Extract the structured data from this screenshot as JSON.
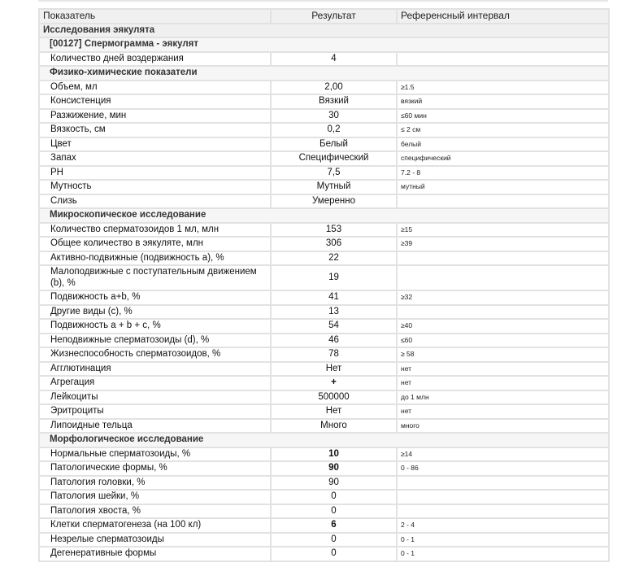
{
  "header": {
    "col_name": "Показатель",
    "col_result": "Результат",
    "col_ref": "Референсный интервал"
  },
  "rows": [
    {
      "type": "section",
      "label": "Исследования эякулята"
    },
    {
      "type": "group",
      "label": "[00127] Спермограмма - эякулят"
    },
    {
      "type": "row",
      "name": "Количество дней воздержания",
      "result": "4",
      "ref": ""
    },
    {
      "type": "sub",
      "label": "Физико-химические показатели"
    },
    {
      "type": "row",
      "name": "Объем, мл",
      "result": "2,00",
      "ref": "≥1.5"
    },
    {
      "type": "row",
      "name": "Консистенция",
      "result": "Вязкий",
      "ref": "вязкий"
    },
    {
      "type": "row",
      "name": "Разжижение, мин",
      "result": "30",
      "ref": "≤60 мин"
    },
    {
      "type": "row",
      "name": "Вязкость, см",
      "result": "0,2",
      "ref": "≤ 2 см"
    },
    {
      "type": "row",
      "name": "Цвет",
      "result": "Белый",
      "ref": "белый"
    },
    {
      "type": "row",
      "name": "Запах",
      "result": "Специфический",
      "ref": "специфический"
    },
    {
      "type": "row",
      "name": "PH",
      "result": "7,5",
      "ref": "7.2 - 8"
    },
    {
      "type": "row",
      "name": "Мутность",
      "result": "Мутный",
      "ref": "мутный"
    },
    {
      "type": "row",
      "name": "Слизь",
      "result": "Умеренно",
      "ref": ""
    },
    {
      "type": "sub",
      "label": "Микроскопическое исследование"
    },
    {
      "type": "row",
      "name": "Количество сперматозоидов 1 мл, млн",
      "result": "153",
      "ref": "≥15"
    },
    {
      "type": "row",
      "name": "Общее количество в эякуляте, млн",
      "result": "306",
      "ref": "≥39"
    },
    {
      "type": "row",
      "name": "Активно-подвижные (подвижность a), %",
      "result": "22",
      "ref": ""
    },
    {
      "type": "row",
      "name": "Малоподвижные с поступательным движением (b), %",
      "result": "19",
      "ref": ""
    },
    {
      "type": "row",
      "name": "Подвижность a+b, %",
      "result": "41",
      "ref": "≥32"
    },
    {
      "type": "row",
      "name": "Другие виды (c), %",
      "result": "13",
      "ref": ""
    },
    {
      "type": "row",
      "name": "Подвижность a + b + c, %",
      "result": "54",
      "ref": "≥40"
    },
    {
      "type": "row",
      "name": "Неподвижные сперматозоиды (d), %",
      "result": "46",
      "ref": "≤60"
    },
    {
      "type": "row",
      "name": "Жизнеспособность сперматозоидов, %",
      "result": "78",
      "ref": "≥ 58"
    },
    {
      "type": "row",
      "name": "Агглютинация",
      "result": "Нет",
      "ref": "нет"
    },
    {
      "type": "row",
      "name": "Агрегация",
      "result": "+",
      "ref": "нет",
      "bold": true
    },
    {
      "type": "row",
      "name": "Лейкоциты",
      "result": "500000",
      "ref": "до 1 млн"
    },
    {
      "type": "row",
      "name": "Эритроциты",
      "result": "Нет",
      "ref": "нет"
    },
    {
      "type": "row",
      "name": "Липоидные тельца",
      "result": "Много",
      "ref": "много"
    },
    {
      "type": "sub",
      "label": "Морфологическое исследование"
    },
    {
      "type": "row",
      "name": "Нормальные сперматозоиды, %",
      "result": "10",
      "ref": "≥14",
      "bold": true
    },
    {
      "type": "row",
      "name": "Патологические формы, %",
      "result": "90",
      "ref": "0 - 86",
      "bold": true
    },
    {
      "type": "row",
      "name": "Патология головки, %",
      "result": "90",
      "ref": ""
    },
    {
      "type": "row",
      "name": "Патология шейки, %",
      "result": "0",
      "ref": ""
    },
    {
      "type": "row",
      "name": "Патология хвоста, %",
      "result": "0",
      "ref": ""
    },
    {
      "type": "row",
      "name": "Клетки сперматогенеза (на 100 кл)",
      "result": "6",
      "ref": "2 - 4",
      "bold": true
    },
    {
      "type": "row",
      "name": "Незрелые сперматозоиды",
      "result": "0",
      "ref": "0 - 1"
    },
    {
      "type": "row",
      "name": "Дегенеративные формы",
      "result": "0",
      "ref": "0 - 1"
    }
  ]
}
